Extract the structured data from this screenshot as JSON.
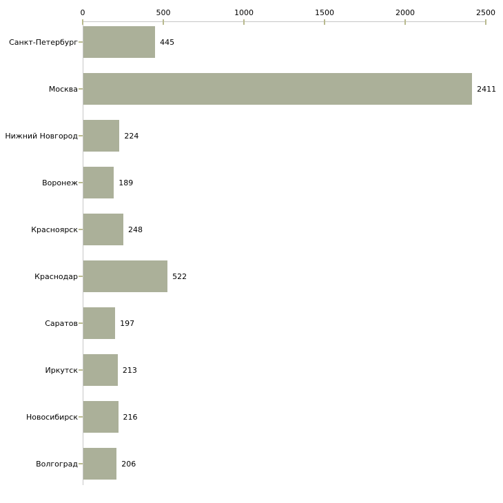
{
  "chart_data": {
    "type": "bar",
    "orientation": "horizontal",
    "title": "",
    "xlabel": "",
    "ylabel": "",
    "grid": false,
    "legend": null,
    "xlim": [
      0,
      2500
    ],
    "x_ticks": [
      "0",
      "500",
      "1000",
      "1500",
      "2000",
      "2500"
    ],
    "x_tick_values": [
      0,
      500,
      1000,
      1500,
      2000,
      2500
    ],
    "categories": [
      "Санкт-Петербург",
      "Москва",
      "Нижний Новгород",
      "Воронеж",
      "Красноярск",
      "Краснодар",
      "Саратов",
      "Иркутск",
      "Новосибирск",
      "Волгоград"
    ],
    "values": [
      445,
      2411,
      224,
      189,
      248,
      522,
      197,
      213,
      216,
      206
    ],
    "value_labels": [
      "445",
      "2411",
      "224",
      "189",
      "248",
      "522",
      "197",
      "213",
      "216",
      "206"
    ],
    "colors": {
      "bar": "#abb099",
      "axis_line": "#c6c6c6",
      "tick": "#b9ba8e",
      "text": "#000000",
      "background": "#ffffff"
    }
  }
}
